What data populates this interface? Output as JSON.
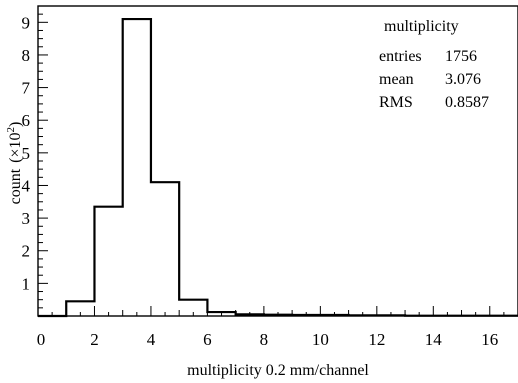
{
  "chart_data": {
    "type": "histogram",
    "title": "",
    "xlabel": "multiplicity 0.2 mm/channel",
    "ylabel_main": "count",
    "ylabel_unit": "(×10",
    "ylabel_exp": "2",
    "ylabel_close": ")",
    "xlim": [
      0,
      17
    ],
    "ylim": [
      0,
      9.5
    ],
    "x_ticks": [
      0,
      2,
      4,
      6,
      8,
      10,
      12,
      14,
      16
    ],
    "y_ticks": [
      1,
      2,
      3,
      4,
      5,
      6,
      7,
      8,
      9
    ],
    "bin_edges": [
      0,
      1,
      2,
      3,
      4,
      5,
      6,
      7,
      8,
      9,
      10,
      11,
      12,
      13,
      14,
      15,
      16,
      17
    ],
    "values": [
      0,
      0.45,
      3.35,
      9.1,
      4.1,
      0.5,
      0.12,
      0.05,
      0.04,
      0.03,
      0.03,
      0.02,
      0.02,
      0.01,
      0.01,
      0.01,
      0.01
    ],
    "stats": {
      "name": "multiplicity",
      "rows": [
        {
          "label": "entries",
          "value": "1756"
        },
        {
          "label": "mean",
          "value": "3.076"
        },
        {
          "label": "RMS",
          "value": "0.8587"
        }
      ]
    }
  }
}
